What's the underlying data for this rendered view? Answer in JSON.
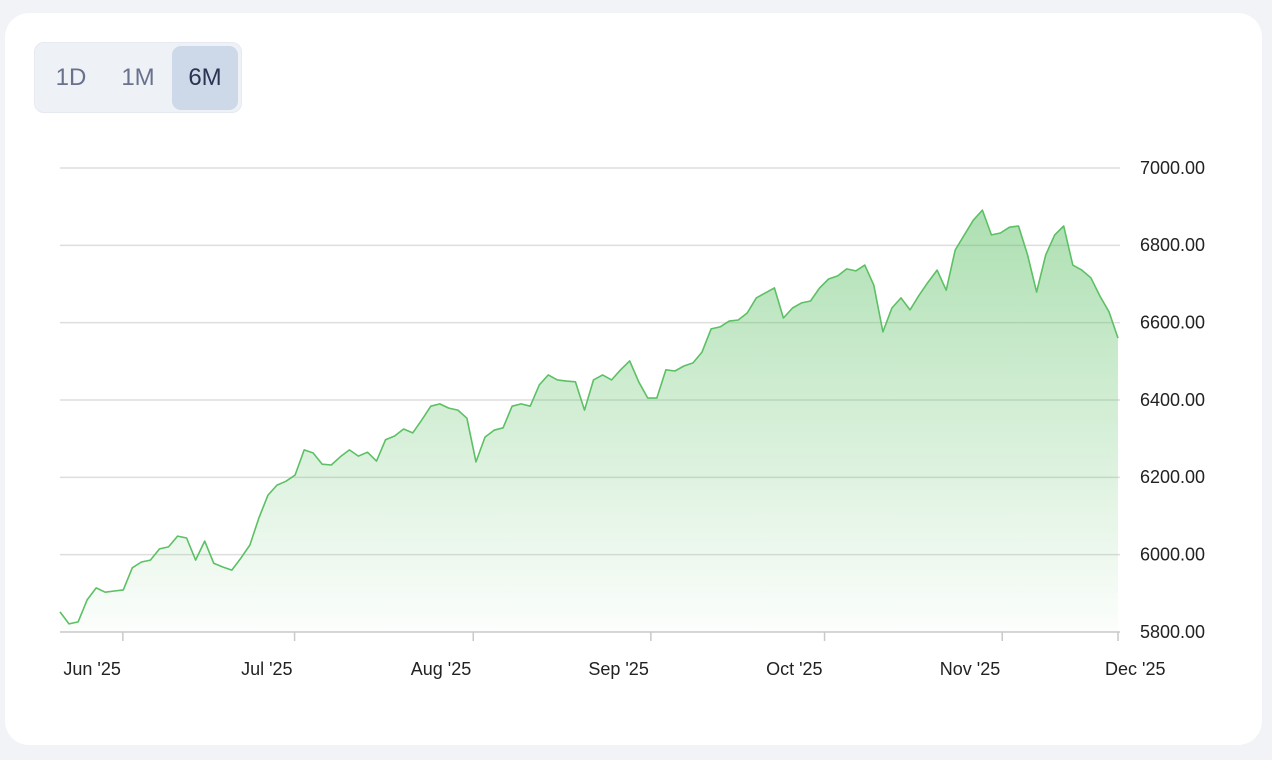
{
  "buttons": [
    "1D",
    "1M",
    "6M"
  ],
  "active_button": 2,
  "chart_data": {
    "type": "area",
    "color": "#5cc064",
    "grid": true,
    "xlim": [
      0,
      117
    ],
    "xticks": [
      {
        "value": 6.95,
        "label": "Jun '25"
      },
      {
        "value": 25.94,
        "label": "Jul '25"
      },
      {
        "value": 45.7,
        "label": "Aug '25"
      },
      {
        "value": 65.34,
        "label": "Sep '25"
      },
      {
        "value": 84.55,
        "label": "Oct '25"
      },
      {
        "value": 104.2,
        "label": "Nov '25"
      },
      {
        "value": 117,
        "label": "Dec '25"
      }
    ],
    "ylim": [
      5800,
      7000
    ],
    "yticks": [
      {
        "value": 5800,
        "label": "5800.00"
      },
      {
        "value": 6000,
        "label": "6000.00"
      },
      {
        "value": 6200,
        "label": "6200.00"
      },
      {
        "value": 6400,
        "label": "6400.00"
      },
      {
        "value": 6600,
        "label": "6600.00"
      },
      {
        "value": 6800,
        "label": "6800.00"
      },
      {
        "value": 7000,
        "label": "7000.00"
      }
    ],
    "values": [
      5852,
      5821,
      5826,
      5883,
      5914,
      5903,
      5906,
      5909,
      5966,
      5981,
      5986,
      6015,
      6020,
      6048,
      6043,
      5986,
      6035,
      5978,
      5968,
      5960,
      5991,
      6025,
      6095,
      6154,
      6180,
      6190,
      6206,
      6271,
      6263,
      6234,
      6232,
      6253,
      6271,
      6255,
      6265,
      6242,
      6297,
      6307,
      6325,
      6315,
      6348,
      6384,
      6390,
      6379,
      6374,
      6353,
      6240,
      6304,
      6322,
      6328,
      6384,
      6390,
      6384,
      6439,
      6465,
      6452,
      6449,
      6447,
      6374,
      6452,
      6465,
      6452,
      6478,
      6501,
      6447,
      6405,
      6405,
      6478,
      6475,
      6488,
      6496,
      6524,
      6584,
      6589,
      6604,
      6607,
      6625,
      6664,
      6677,
      6690,
      6612,
      6638,
      6651,
      6656,
      6690,
      6713,
      6721,
      6739,
      6734,
      6749,
      6697,
      6576,
      6638,
      6664,
      6633,
      6671,
      6705,
      6736,
      6684,
      6788,
      6827,
      6865,
      6891,
      6827,
      6832,
      6847,
      6850,
      6775,
      6679,
      6775,
      6827,
      6850,
      6749,
      6736,
      6716,
      6669,
      6628,
      6560
    ]
  }
}
